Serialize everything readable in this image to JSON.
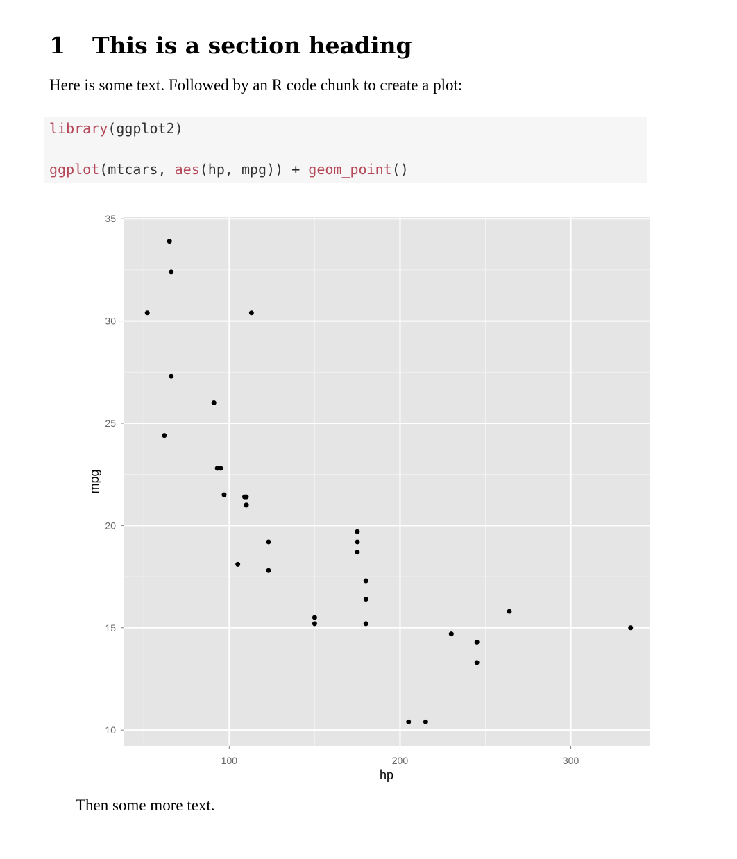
{
  "section": {
    "number": "1",
    "title": "This is a section heading"
  },
  "intro_text": "Here is some text. Followed by an R code chunk to create a plot:",
  "code": {
    "line1": {
      "fn": "library",
      "rest": "(ggplot2)"
    },
    "line2": {
      "fn1": "ggplot",
      "arg1": "(mtcars, ",
      "fn2": "aes",
      "arg2": "(hp, mpg)) ",
      "op": "+",
      "sp": " ",
      "fn3": "geom_point",
      "arg3": "()"
    }
  },
  "after_text": "Then some more text.",
  "colors": {
    "code_function": "#b5495a",
    "code_background": "#f6f6f6",
    "panel_background": "#e5e5e5",
    "grid": "#ffffff",
    "points": "#000000"
  },
  "chart_data": {
    "type": "scatter",
    "xlabel": "hp",
    "ylabel": "mpg",
    "xlim": [
      38.5,
      346.5
    ],
    "ylim": [
      9.225,
      35.075
    ],
    "xticks": [
      100,
      200,
      300
    ],
    "yticks": [
      10,
      15,
      20,
      25,
      30,
      35
    ],
    "grid": true,
    "points": [
      {
        "x": 110,
        "y": 21.0
      },
      {
        "x": 110,
        "y": 21.0
      },
      {
        "x": 93,
        "y": 22.8
      },
      {
        "x": 110,
        "y": 21.4
      },
      {
        "x": 175,
        "y": 18.7
      },
      {
        "x": 105,
        "y": 18.1
      },
      {
        "x": 245,
        "y": 14.3
      },
      {
        "x": 62,
        "y": 24.4
      },
      {
        "x": 95,
        "y": 22.8
      },
      {
        "x": 123,
        "y": 19.2
      },
      {
        "x": 123,
        "y": 17.8
      },
      {
        "x": 180,
        "y": 16.4
      },
      {
        "x": 180,
        "y": 17.3
      },
      {
        "x": 180,
        "y": 15.2
      },
      {
        "x": 205,
        "y": 10.4
      },
      {
        "x": 215,
        "y": 10.4
      },
      {
        "x": 230,
        "y": 14.7
      },
      {
        "x": 66,
        "y": 32.4
      },
      {
        "x": 52,
        "y": 30.4
      },
      {
        "x": 65,
        "y": 33.9
      },
      {
        "x": 97,
        "y": 21.5
      },
      {
        "x": 150,
        "y": 15.5
      },
      {
        "x": 150,
        "y": 15.2
      },
      {
        "x": 245,
        "y": 13.3
      },
      {
        "x": 175,
        "y": 19.2
      },
      {
        "x": 66,
        "y": 27.3
      },
      {
        "x": 91,
        "y": 26.0
      },
      {
        "x": 113,
        "y": 30.4
      },
      {
        "x": 264,
        "y": 15.8
      },
      {
        "x": 175,
        "y": 19.7
      },
      {
        "x": 335,
        "y": 15.0
      },
      {
        "x": 109,
        "y": 21.4
      }
    ]
  }
}
